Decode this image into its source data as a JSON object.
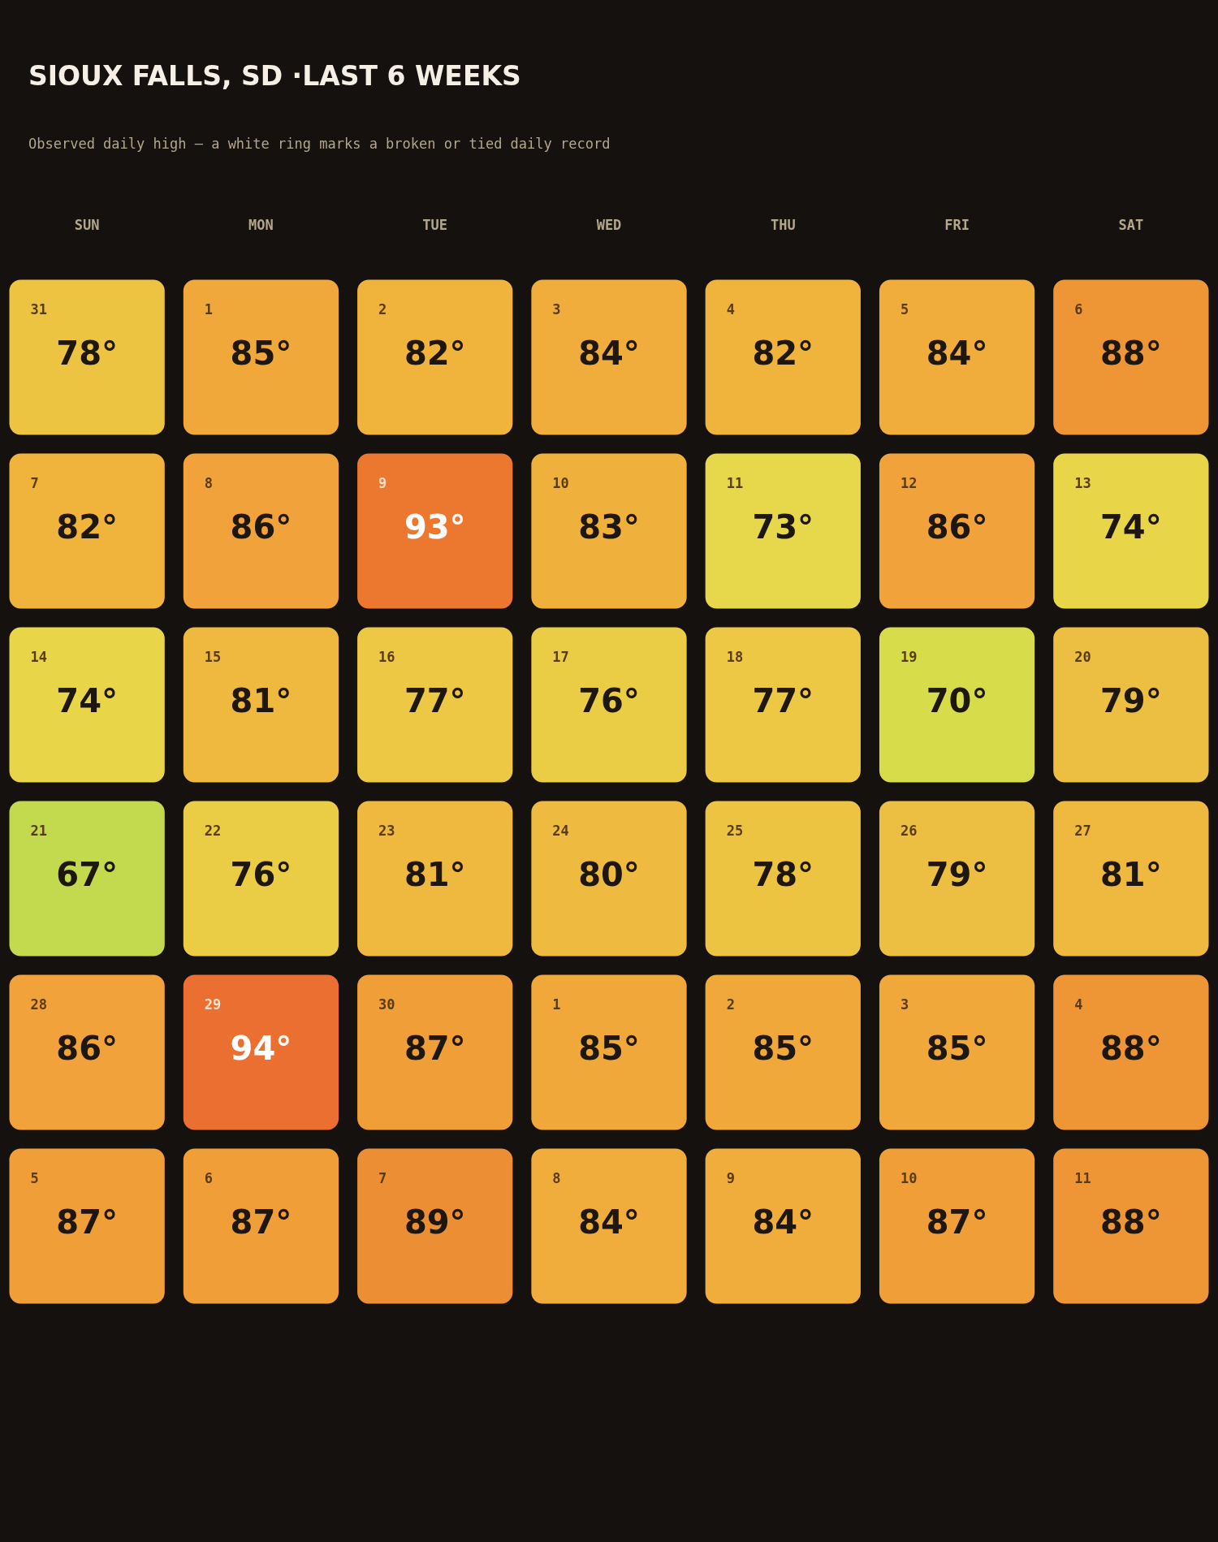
{
  "chart_data": {
    "type": "heatmap",
    "title": "SIOUX FALLS, SD ·LAST 6 WEEKS",
    "subtitle": "Observed daily high — a white ring marks a broken or tied daily record",
    "categories": [
      "SUN",
      "MON",
      "TUE",
      "WED",
      "THU",
      "FRI",
      "SAT"
    ],
    "y_categories": [
      null,
      null,
      null,
      null,
      null,
      null
    ],
    "cells": [
      [
        78,
        85,
        82,
        84,
        82,
        84,
        88
      ],
      [
        82,
        86,
        93,
        83,
        73,
        86,
        74
      ],
      [
        74,
        81,
        77,
        76,
        77,
        70,
        79
      ],
      [
        67,
        76,
        81,
        80,
        78,
        79,
        81
      ],
      [
        86,
        94,
        87,
        85,
        85,
        85,
        88
      ],
      [
        87,
        87,
        89,
        84,
        84,
        87,
        88
      ]
    ],
    "cell_labels": [
      [
        "78°",
        "85°",
        "82°",
        "84°",
        "82°",
        "84°",
        "88°"
      ],
      [
        "82°",
        "86°",
        "93°",
        "83°",
        "73°",
        "86°",
        "74°"
      ],
      [
        "74°",
        "81°",
        "77°",
        "76°",
        "77°",
        "70°",
        "79°"
      ],
      [
        "67°",
        "76°",
        "81°",
        "80°",
        "78°",
        "79°",
        "81°"
      ],
      [
        "86°",
        "94°",
        "87°",
        "85°",
        "85°",
        "85°",
        "88°"
      ],
      [
        "87°",
        "87°",
        "89°",
        "84°",
        "84°",
        "87°",
        "88°"
      ]
    ],
    "annotations": [
      "31",
      "1",
      "2",
      "3",
      "4",
      "5",
      "6",
      "7",
      "8",
      "9",
      "10",
      "11",
      "12",
      "13",
      "14",
      "15",
      "16",
      "17",
      "18",
      "19",
      "20",
      "21",
      "22",
      "23",
      "24",
      "25",
      "26",
      "27",
      "28",
      "29",
      "30",
      "1",
      "2",
      "3",
      "4",
      "5",
      "6",
      "7",
      "8",
      "9",
      "10",
      "11"
    ],
    "colors": [
      [
        "#edc441",
        "#f0a83a",
        "#f0b43c",
        "#f0ad3b",
        "#f0b43c",
        "#f0ad3b",
        "#ee9535"
      ],
      [
        "#f0b43c",
        "#f2a23a",
        "#ec7830",
        "#f0b13c",
        "#e6d84a",
        "#f2a23a",
        "#e8d548"
      ],
      [
        "#e8d548",
        "#efb83e",
        "#edc844",
        "#ebcc45",
        "#edc844",
        "#d6dc4a",
        "#ecbe41"
      ],
      [
        "#c3da4e",
        "#ebcc45",
        "#efb83e",
        "#eebb40",
        "#edc441",
        "#ecbe41",
        "#efb83e"
      ],
      [
        "#f2a23a",
        "#eb6f30",
        "#f09e38",
        "#f0a83a",
        "#f0a83a",
        "#f0a83a",
        "#ee9535"
      ],
      [
        "#f09e38",
        "#f09e38",
        "#ec8f34",
        "#f0ad3b",
        "#f0ad3b",
        "#f09e38",
        "#ee9535"
      ]
    ]
  }
}
